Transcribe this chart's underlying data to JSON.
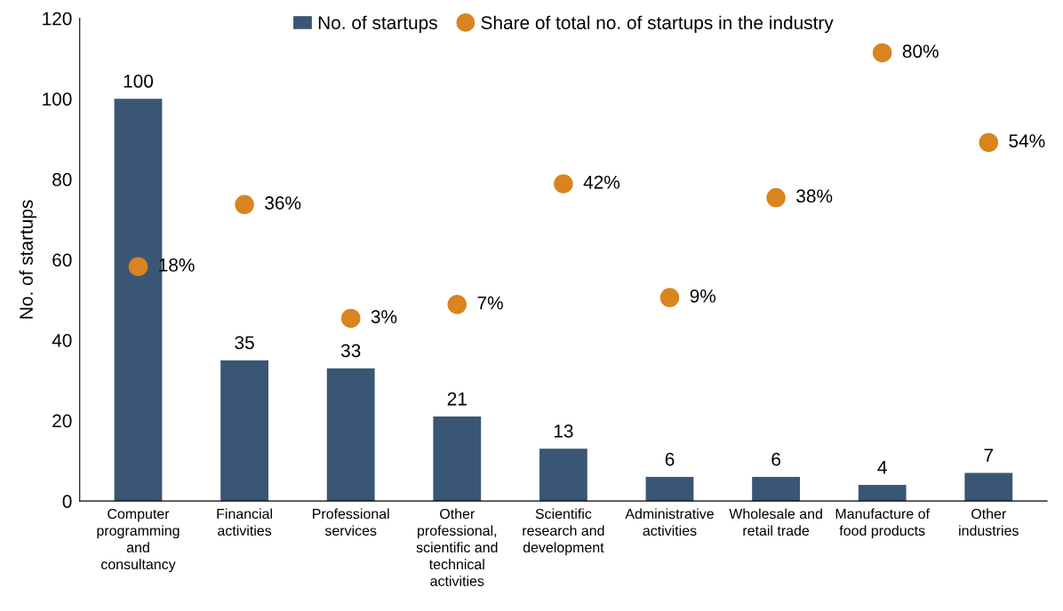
{
  "chart_data": {
    "type": "bar",
    "categories": [
      "Computer\nprogramming\nand\nconsultancy",
      "Financial\nactivities",
      "Professional\nservices",
      "Other\nprofessional,\nscientific and\ntechnical\nactivities",
      "Scientific\nresearch and\ndevelopment",
      "Administrative\nactivities",
      "Wholesale and\nretail trade",
      "Manufacture of\nfood products",
      "Other\nindustries"
    ],
    "ylabel": "No. of startups",
    "ylim": [
      0,
      120
    ],
    "yticks": [
      0,
      20,
      40,
      60,
      80,
      100,
      120
    ],
    "y2lim": [
      -50,
      90
    ],
    "series": [
      {
        "name": "No. of startups",
        "color": "#3a5675",
        "values": [
          100,
          35,
          33,
          21,
          13,
          6,
          6,
          4,
          7
        ]
      },
      {
        "name": "Share of total no. of startups in the industry",
        "type": "scatter",
        "axis": "y2",
        "color": "#d9841e",
        "marker": "circle",
        "values": [
          18,
          36,
          3,
          7,
          42,
          9,
          38,
          80,
          54
        ],
        "value_labels": [
          "18%",
          "36%",
          "3%",
          "7%",
          "42%",
          "9%",
          "38%",
          "80%",
          "54%"
        ]
      }
    ],
    "data_labels": true,
    "grid": false,
    "legend": "top"
  }
}
